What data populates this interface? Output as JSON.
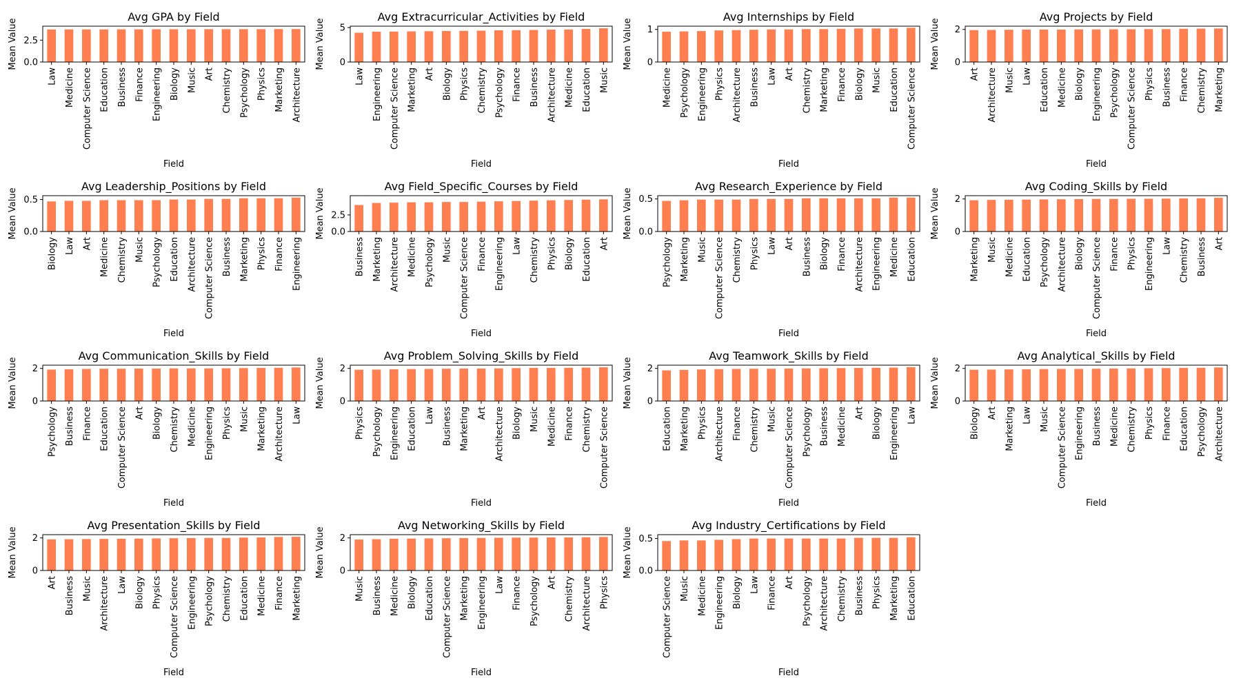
{
  "bar_color": "#FF7F50",
  "axis_color": "#000000",
  "chart_data": [
    {
      "type": "bar",
      "title": "Avg GPA by Field",
      "xlabel": "Field",
      "ylabel": "Mean Value",
      "ylim": [
        0,
        4.1
      ],
      "yticks": [
        0.0,
        2.5
      ],
      "ytick_labels": [
        "0.0",
        "2.5"
      ],
      "categories": [
        "Law",
        "Medicine",
        "Computer Science",
        "Education",
        "Business",
        "Finance",
        "Engineering",
        "Biology",
        "Music",
        "Art",
        "Chemistry",
        "Psychology",
        "Physics",
        "Marketing",
        "Architecture"
      ],
      "values": [
        3.72,
        3.73,
        3.73,
        3.73,
        3.74,
        3.74,
        3.75,
        3.75,
        3.75,
        3.76,
        3.76,
        3.76,
        3.76,
        3.77,
        3.77
      ]
    },
    {
      "type": "bar",
      "title": "Avg Extracurricular_Activities by Field",
      "xlabel": "Field",
      "ylabel": "Mean Value",
      "ylim": [
        0,
        5.2
      ],
      "yticks": [
        0,
        5
      ],
      "ytick_labels": [
        "0",
        "5"
      ],
      "categories": [
        "Law",
        "Engineering",
        "Computer Science",
        "Marketing",
        "Art",
        "Biology",
        "Physics",
        "Chemistry",
        "Psychology",
        "Finance",
        "Business",
        "Architecture",
        "Medicine",
        "Education",
        "Music"
      ],
      "values": [
        4.25,
        4.4,
        4.42,
        4.45,
        4.47,
        4.5,
        4.52,
        4.55,
        4.6,
        4.62,
        4.65,
        4.7,
        4.72,
        4.8,
        4.9
      ]
    },
    {
      "type": "bar",
      "title": "Avg Internships by Field",
      "xlabel": "Field",
      "ylabel": "Mean Value",
      "ylim": [
        0,
        1.1
      ],
      "yticks": [
        0,
        1
      ],
      "ytick_labels": [
        "0",
        "1"
      ],
      "categories": [
        "Medicine",
        "Psychology",
        "Engineering",
        "Physics",
        "Architecture",
        "Business",
        "Law",
        "Art",
        "Chemistry",
        "Marketing",
        "Finance",
        "Biology",
        "Music",
        "Education",
        "Computer Science"
      ],
      "values": [
        0.93,
        0.94,
        0.95,
        0.97,
        0.98,
        0.99,
        1.0,
        1.0,
        1.01,
        1.01,
        1.02,
        1.03,
        1.03,
        1.03,
        1.05
      ]
    },
    {
      "type": "bar",
      "title": "Avg Projects by Field",
      "xlabel": "Field",
      "ylabel": "Mean Value",
      "ylim": [
        0,
        2.2
      ],
      "yticks": [
        0,
        2
      ],
      "ytick_labels": [
        "0",
        "2"
      ],
      "categories": [
        "Art",
        "Architecture",
        "Music",
        "Law",
        "Education",
        "Medicine",
        "Biology",
        "Engineering",
        "Psychology",
        "Computer Science",
        "Physics",
        "Business",
        "Finance",
        "Chemistry",
        "Marketing"
      ],
      "values": [
        1.96,
        1.97,
        1.98,
        1.99,
        1.99,
        1.99,
        2.0,
        2.0,
        2.01,
        2.01,
        2.02,
        2.02,
        2.04,
        2.05,
        2.06
      ]
    },
    {
      "type": "bar",
      "title": "Avg Leadership_Positions by Field",
      "xlabel": "Field",
      "ylabel": "Mean Value",
      "ylim": [
        0,
        0.56
      ],
      "yticks": [
        0.0,
        0.5
      ],
      "ytick_labels": [
        "0.0",
        "0.5"
      ],
      "categories": [
        "Biology",
        "Law",
        "Art",
        "Medicine",
        "Chemistry",
        "Music",
        "Psychology",
        "Education",
        "Architecture",
        "Computer Science",
        "Business",
        "Marketing",
        "Physics",
        "Finance",
        "Engineering"
      ],
      "values": [
        0.47,
        0.48,
        0.48,
        0.49,
        0.49,
        0.49,
        0.49,
        0.5,
        0.5,
        0.51,
        0.51,
        0.52,
        0.52,
        0.52,
        0.53
      ]
    },
    {
      "type": "bar",
      "title": "Avg Field_Specific_Courses by Field",
      "xlabel": "Field",
      "ylabel": "Mean Value",
      "ylim": [
        0,
        5.4
      ],
      "yticks": [
        0.0,
        2.5
      ],
      "ytick_labels": [
        "0.0",
        "2.5"
      ],
      "categories": [
        "Business",
        "Marketing",
        "Architecture",
        "Medicine",
        "Psychology",
        "Music",
        "Computer Science",
        "Finance",
        "Engineering",
        "Law",
        "Chemistry",
        "Physics",
        "Biology",
        "Education",
        "Art"
      ],
      "values": [
        4.0,
        4.3,
        4.35,
        4.4,
        4.4,
        4.45,
        4.45,
        4.5,
        4.55,
        4.6,
        4.65,
        4.7,
        4.75,
        4.8,
        4.85
      ]
    },
    {
      "type": "bar",
      "title": "Avg Research_Experience by Field",
      "xlabel": "Field",
      "ylabel": "Mean Value",
      "ylim": [
        0,
        0.55
      ],
      "yticks": [
        0.0,
        0.5
      ],
      "ytick_labels": [
        "0.0",
        "0.5"
      ],
      "categories": [
        "Psychology",
        "Marketing",
        "Music",
        "Computer Science",
        "Chemistry",
        "Physics",
        "Law",
        "Art",
        "Business",
        "Biology",
        "Finance",
        "Architecture",
        "Engineering",
        "Medicine",
        "Education"
      ],
      "values": [
        0.47,
        0.48,
        0.49,
        0.49,
        0.49,
        0.5,
        0.5,
        0.5,
        0.51,
        0.51,
        0.51,
        0.51,
        0.51,
        0.52,
        0.52
      ]
    },
    {
      "type": "bar",
      "title": "Avg Coding_Skills by Field",
      "xlabel": "Field",
      "ylabel": "Mean Value",
      "ylim": [
        0,
        2.2
      ],
      "yticks": [
        0,
        2
      ],
      "ytick_labels": [
        "0",
        "2"
      ],
      "categories": [
        "Marketing",
        "Music",
        "Medicine",
        "Education",
        "Psychology",
        "Architecture",
        "Biology",
        "Computer Science",
        "Finance",
        "Physics",
        "Engineering",
        "Law",
        "Chemistry",
        "Business",
        "Art"
      ],
      "values": [
        1.92,
        1.94,
        1.95,
        1.96,
        1.97,
        1.98,
        1.99,
        2.0,
        2.0,
        2.01,
        2.01,
        2.02,
        2.03,
        2.04,
        2.07
      ]
    },
    {
      "type": "bar",
      "title": "Avg Communication_Skills by Field",
      "xlabel": "Field",
      "ylabel": "Mean Value",
      "ylim": [
        0,
        2.2
      ],
      "yticks": [
        0,
        2
      ],
      "ytick_labels": [
        "0",
        "2"
      ],
      "categories": [
        "Psychology",
        "Business",
        "Finance",
        "Education",
        "Computer Science",
        "Art",
        "Biology",
        "Chemistry",
        "Medicine",
        "Engineering",
        "Physics",
        "Music",
        "Marketing",
        "Architecture",
        "Law"
      ],
      "values": [
        1.93,
        1.95,
        1.97,
        1.98,
        1.98,
        1.99,
        1.99,
        2.0,
        2.0,
        2.0,
        2.01,
        2.02,
        2.03,
        2.04,
        2.06
      ]
    },
    {
      "type": "bar",
      "title": "Avg Problem_Solving_Skills by Field",
      "xlabel": "Field",
      "ylabel": "Mean Value",
      "ylim": [
        0,
        2.2
      ],
      "yticks": [
        0,
        2
      ],
      "ytick_labels": [
        "0",
        "2"
      ],
      "categories": [
        "Physics",
        "Psychology",
        "Engineering",
        "Education",
        "Law",
        "Business",
        "Marketing",
        "Art",
        "Architecture",
        "Biology",
        "Music",
        "Medicine",
        "Finance",
        "Chemistry",
        "Computer Science"
      ],
      "values": [
        1.92,
        1.93,
        1.95,
        1.96,
        1.97,
        1.98,
        1.99,
        1.99,
        2.0,
        2.02,
        2.03,
        2.03,
        2.04,
        2.05,
        2.07
      ]
    },
    {
      "type": "bar",
      "title": "Avg Teamwork_Skills by Field",
      "xlabel": "Field",
      "ylabel": "Mean Value",
      "ylim": [
        0,
        2.2
      ],
      "yticks": [
        0,
        2
      ],
      "ytick_labels": [
        "0",
        "2"
      ],
      "categories": [
        "Education",
        "Marketing",
        "Physics",
        "Architecture",
        "Finance",
        "Chemistry",
        "Music",
        "Computer Science",
        "Psychology",
        "Business",
        "Medicine",
        "Art",
        "Biology",
        "Engineering",
        "Law"
      ],
      "values": [
        1.88,
        1.91,
        1.94,
        1.96,
        1.97,
        1.98,
        1.98,
        1.99,
        2.0,
        2.01,
        2.02,
        2.03,
        2.04,
        2.05,
        2.08
      ]
    },
    {
      "type": "bar",
      "title": "Avg Analytical_Skills by Field",
      "xlabel": "Field",
      "ylabel": "Mean Value",
      "ylim": [
        0,
        2.2
      ],
      "yticks": [
        0,
        2
      ],
      "ytick_labels": [
        "0",
        "2"
      ],
      "categories": [
        "Biology",
        "Art",
        "Marketing",
        "Law",
        "Music",
        "Computer Science",
        "Engineering",
        "Business",
        "Medicine",
        "Chemistry",
        "Physics",
        "Finance",
        "Education",
        "Psychology",
        "Architecture"
      ],
      "values": [
        1.92,
        1.93,
        1.94,
        1.95,
        1.96,
        1.97,
        1.97,
        1.98,
        1.99,
        2.0,
        2.01,
        2.02,
        2.03,
        2.04,
        2.06
      ]
    },
    {
      "type": "bar",
      "title": "Avg Presentation_Skills by Field",
      "xlabel": "Field",
      "ylabel": "Mean Value",
      "ylim": [
        0,
        2.2
      ],
      "yticks": [
        0,
        2
      ],
      "ytick_labels": [
        "0",
        "2"
      ],
      "categories": [
        "Art",
        "Business",
        "Music",
        "Architecture",
        "Law",
        "Biology",
        "Physics",
        "Computer Science",
        "Engineering",
        "Psychology",
        "Chemistry",
        "Education",
        "Medicine",
        "Finance",
        "Marketing"
      ],
      "values": [
        1.91,
        1.92,
        1.93,
        1.94,
        1.95,
        1.96,
        1.97,
        1.98,
        1.99,
        2.0,
        2.0,
        2.02,
        2.03,
        2.06,
        2.07
      ]
    },
    {
      "type": "bar",
      "title": "Avg Networking_Skills by Field",
      "xlabel": "Field",
      "ylabel": "Mean Value",
      "ylim": [
        0,
        2.2
      ],
      "yticks": [
        0,
        2
      ],
      "ytick_labels": [
        "0",
        "2"
      ],
      "categories": [
        "Music",
        "Business",
        "Medicine",
        "Biology",
        "Education",
        "Computer Science",
        "Marketing",
        "Engineering",
        "Law",
        "Finance",
        "Psychology",
        "Art",
        "Chemistry",
        "Architecture",
        "Physics"
      ],
      "values": [
        1.9,
        1.92,
        1.95,
        1.96,
        1.97,
        1.98,
        1.99,
        2.0,
        2.01,
        2.02,
        2.02,
        2.03,
        2.03,
        2.04,
        2.06
      ]
    },
    {
      "type": "bar",
      "title": "Avg Industry_Certifications by Field",
      "xlabel": "Field",
      "ylabel": "Mean Value",
      "ylim": [
        0,
        0.56
      ],
      "yticks": [
        0.0,
        0.5
      ],
      "ytick_labels": [
        "0.0",
        "0.5"
      ],
      "categories": [
        "Computer Science",
        "Music",
        "Medicine",
        "Engineering",
        "Biology",
        "Law",
        "Finance",
        "Art",
        "Psychology",
        "Architecture",
        "Chemistry",
        "Business",
        "Physics",
        "Marketing",
        "Education"
      ],
      "values": [
        0.46,
        0.47,
        0.47,
        0.48,
        0.49,
        0.5,
        0.5,
        0.5,
        0.5,
        0.5,
        0.5,
        0.51,
        0.51,
        0.51,
        0.52
      ]
    }
  ]
}
